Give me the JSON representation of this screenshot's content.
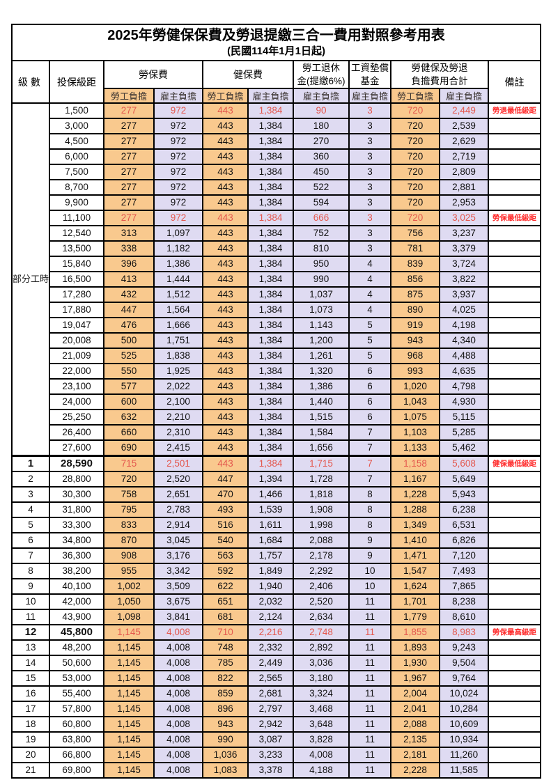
{
  "title": "2025年勞健保保費及勞退提繳三合一費用對照參考用表",
  "subtitle": "(民國114年1月1日起)",
  "colors": {
    "employee_bg": "#F9C98E",
    "employer_bg": "#DFDBF2",
    "highlight_value_red": "#E4584E",
    "remark_red": "#FF2A2A",
    "border": "#000000"
  },
  "header": {
    "level": "級數",
    "bracket": "投保級距",
    "labor_ins": "勞保費",
    "health_ins": "健保費",
    "pension_line1": "勞工退休",
    "pension_line2": "金(提繳6%)",
    "wage_fund_line1": "工資墊償",
    "wage_fund_line2": "基金",
    "total_line1": "勞健保及勞退",
    "total_line2": "負擔費用合計",
    "remark": "備註",
    "employee": "勞工負擔",
    "employer": "雇主負擔"
  },
  "part_time_label": "部分工時",
  "rows": [
    {
      "level": "",
      "bracket": "1,500",
      "values": [
        "277",
        "972",
        "443",
        "1,384",
        "90",
        "3",
        "720",
        "2,449"
      ],
      "remark": "勞退最低級距",
      "red": true,
      "bold": false
    },
    {
      "level": "",
      "bracket": "3,000",
      "values": [
        "277",
        "972",
        "443",
        "1,384",
        "180",
        "3",
        "720",
        "2,539"
      ],
      "remark": "",
      "red": false,
      "bold": false
    },
    {
      "level": "",
      "bracket": "4,500",
      "values": [
        "277",
        "972",
        "443",
        "1,384",
        "270",
        "3",
        "720",
        "2,629"
      ],
      "remark": "",
      "red": false,
      "bold": false
    },
    {
      "level": "",
      "bracket": "6,000",
      "values": [
        "277",
        "972",
        "443",
        "1,384",
        "360",
        "3",
        "720",
        "2,719"
      ],
      "remark": "",
      "red": false,
      "bold": false
    },
    {
      "level": "",
      "bracket": "7,500",
      "values": [
        "277",
        "972",
        "443",
        "1,384",
        "450",
        "3",
        "720",
        "2,809"
      ],
      "remark": "",
      "red": false,
      "bold": false
    },
    {
      "level": "",
      "bracket": "8,700",
      "values": [
        "277",
        "972",
        "443",
        "1,384",
        "522",
        "3",
        "720",
        "2,881"
      ],
      "remark": "",
      "red": false,
      "bold": false
    },
    {
      "level": "",
      "bracket": "9,900",
      "values": [
        "277",
        "972",
        "443",
        "1,384",
        "594",
        "3",
        "720",
        "2,953"
      ],
      "remark": "",
      "red": false,
      "bold": false
    },
    {
      "level": "",
      "bracket": "11,100",
      "values": [
        "277",
        "972",
        "443",
        "1,384",
        "666",
        "3",
        "720",
        "3,025"
      ],
      "remark": "勞保最低級距",
      "red": true,
      "bold": false
    },
    {
      "level": "",
      "bracket": "12,540",
      "values": [
        "313",
        "1,097",
        "443",
        "1,384",
        "752",
        "3",
        "756",
        "3,237"
      ],
      "remark": "",
      "red": false,
      "bold": false
    },
    {
      "level": "",
      "bracket": "13,500",
      "values": [
        "338",
        "1,182",
        "443",
        "1,384",
        "810",
        "3",
        "781",
        "3,379"
      ],
      "remark": "",
      "red": false,
      "bold": false
    },
    {
      "level": "",
      "bracket": "15,840",
      "values": [
        "396",
        "1,386",
        "443",
        "1,384",
        "950",
        "4",
        "839",
        "3,724"
      ],
      "remark": "",
      "red": false,
      "bold": false
    },
    {
      "level": "",
      "bracket": "16,500",
      "values": [
        "413",
        "1,444",
        "443",
        "1,384",
        "990",
        "4",
        "856",
        "3,822"
      ],
      "remark": "",
      "red": false,
      "bold": false
    },
    {
      "level": "",
      "bracket": "17,280",
      "values": [
        "432",
        "1,512",
        "443",
        "1,384",
        "1,037",
        "4",
        "875",
        "3,937"
      ],
      "remark": "",
      "red": false,
      "bold": false
    },
    {
      "level": "",
      "bracket": "17,880",
      "values": [
        "447",
        "1,564",
        "443",
        "1,384",
        "1,073",
        "4",
        "890",
        "4,025"
      ],
      "remark": "",
      "red": false,
      "bold": false
    },
    {
      "level": "",
      "bracket": "19,047",
      "values": [
        "476",
        "1,666",
        "443",
        "1,384",
        "1,143",
        "5",
        "919",
        "4,198"
      ],
      "remark": "",
      "red": false,
      "bold": false
    },
    {
      "level": "",
      "bracket": "20,008",
      "values": [
        "500",
        "1,751",
        "443",
        "1,384",
        "1,200",
        "5",
        "943",
        "4,340"
      ],
      "remark": "",
      "red": false,
      "bold": false
    },
    {
      "level": "",
      "bracket": "21,009",
      "values": [
        "525",
        "1,838",
        "443",
        "1,384",
        "1,261",
        "5",
        "968",
        "4,488"
      ],
      "remark": "",
      "red": false,
      "bold": false
    },
    {
      "level": "",
      "bracket": "22,000",
      "values": [
        "550",
        "1,925",
        "443",
        "1,384",
        "1,320",
        "6",
        "993",
        "4,635"
      ],
      "remark": "",
      "red": false,
      "bold": false
    },
    {
      "level": "",
      "bracket": "23,100",
      "values": [
        "577",
        "2,022",
        "443",
        "1,384",
        "1,386",
        "6",
        "1,020",
        "4,798"
      ],
      "remark": "",
      "red": false,
      "bold": false
    },
    {
      "level": "",
      "bracket": "24,000",
      "values": [
        "600",
        "2,100",
        "443",
        "1,384",
        "1,440",
        "6",
        "1,043",
        "4,930"
      ],
      "remark": "",
      "red": false,
      "bold": false
    },
    {
      "level": "",
      "bracket": "25,250",
      "values": [
        "632",
        "2,210",
        "443",
        "1,384",
        "1,515",
        "6",
        "1,075",
        "5,115"
      ],
      "remark": "",
      "red": false,
      "bold": false
    },
    {
      "level": "",
      "bracket": "26,400",
      "values": [
        "660",
        "2,310",
        "443",
        "1,384",
        "1,584",
        "7",
        "1,103",
        "5,285"
      ],
      "remark": "",
      "red": false,
      "bold": false
    },
    {
      "level": "",
      "bracket": "27,600",
      "values": [
        "690",
        "2,415",
        "443",
        "1,384",
        "1,656",
        "7",
        "1,133",
        "5,462"
      ],
      "remark": "",
      "red": false,
      "bold": false
    },
    {
      "level": "1",
      "bracket": "28,590",
      "values": [
        "715",
        "2,501",
        "443",
        "1,384",
        "1,715",
        "7",
        "1,158",
        "5,608"
      ],
      "remark": "健保最低級距",
      "red": true,
      "bold": true
    },
    {
      "level": "2",
      "bracket": "28,800",
      "values": [
        "720",
        "2,520",
        "447",
        "1,394",
        "1,728",
        "7",
        "1,167",
        "5,649"
      ],
      "remark": "",
      "red": false,
      "bold": false
    },
    {
      "level": "3",
      "bracket": "30,300",
      "values": [
        "758",
        "2,651",
        "470",
        "1,466",
        "1,818",
        "8",
        "1,228",
        "5,943"
      ],
      "remark": "",
      "red": false,
      "bold": false
    },
    {
      "level": "4",
      "bracket": "31,800",
      "values": [
        "795",
        "2,783",
        "493",
        "1,539",
        "1,908",
        "8",
        "1,288",
        "6,238"
      ],
      "remark": "",
      "red": false,
      "bold": false
    },
    {
      "level": "5",
      "bracket": "33,300",
      "values": [
        "833",
        "2,914",
        "516",
        "1,611",
        "1,998",
        "8",
        "1,349",
        "6,531"
      ],
      "remark": "",
      "red": false,
      "bold": false
    },
    {
      "level": "6",
      "bracket": "34,800",
      "values": [
        "870",
        "3,045",
        "540",
        "1,684",
        "2,088",
        "9",
        "1,410",
        "6,826"
      ],
      "remark": "",
      "red": false,
      "bold": false
    },
    {
      "level": "7",
      "bracket": "36,300",
      "values": [
        "908",
        "3,176",
        "563",
        "1,757",
        "2,178",
        "9",
        "1,471",
        "7,120"
      ],
      "remark": "",
      "red": false,
      "bold": false
    },
    {
      "level": "8",
      "bracket": "38,200",
      "values": [
        "955",
        "3,342",
        "592",
        "1,849",
        "2,292",
        "10",
        "1,547",
        "7,493"
      ],
      "remark": "",
      "red": false,
      "bold": false
    },
    {
      "level": "9",
      "bracket": "40,100",
      "values": [
        "1,002",
        "3,509",
        "622",
        "1,940",
        "2,406",
        "10",
        "1,624",
        "7,865"
      ],
      "remark": "",
      "red": false,
      "bold": false
    },
    {
      "level": "10",
      "bracket": "42,000",
      "values": [
        "1,050",
        "3,675",
        "651",
        "2,032",
        "2,520",
        "11",
        "1,701",
        "8,238"
      ],
      "remark": "",
      "red": false,
      "bold": false
    },
    {
      "level": "11",
      "bracket": "43,900",
      "values": [
        "1,098",
        "3,841",
        "681",
        "2,124",
        "2,634",
        "11",
        "1,779",
        "8,610"
      ],
      "remark": "",
      "red": false,
      "bold": false
    },
    {
      "level": "12",
      "bracket": "45,800",
      "values": [
        "1,145",
        "4,008",
        "710",
        "2,216",
        "2,748",
        "11",
        "1,855",
        "8,983"
      ],
      "remark": "勞保最高級距",
      "red": true,
      "bold": true
    },
    {
      "level": "13",
      "bracket": "48,200",
      "values": [
        "1,145",
        "4,008",
        "748",
        "2,332",
        "2,892",
        "11",
        "1,893",
        "9,243"
      ],
      "remark": "",
      "red": false,
      "bold": false
    },
    {
      "level": "14",
      "bracket": "50,600",
      "values": [
        "1,145",
        "4,008",
        "785",
        "2,449",
        "3,036",
        "11",
        "1,930",
        "9,504"
      ],
      "remark": "",
      "red": false,
      "bold": false
    },
    {
      "level": "15",
      "bracket": "53,000",
      "values": [
        "1,145",
        "4,008",
        "822",
        "2,565",
        "3,180",
        "11",
        "1,967",
        "9,764"
      ],
      "remark": "",
      "red": false,
      "bold": false
    },
    {
      "level": "16",
      "bracket": "55,400",
      "values": [
        "1,145",
        "4,008",
        "859",
        "2,681",
        "3,324",
        "11",
        "2,004",
        "10,024"
      ],
      "remark": "",
      "red": false,
      "bold": false
    },
    {
      "level": "17",
      "bracket": "57,800",
      "values": [
        "1,145",
        "4,008",
        "896",
        "2,797",
        "3,468",
        "11",
        "2,041",
        "10,284"
      ],
      "remark": "",
      "red": false,
      "bold": false
    },
    {
      "level": "18",
      "bracket": "60,800",
      "values": [
        "1,145",
        "4,008",
        "943",
        "2,942",
        "3,648",
        "11",
        "2,088",
        "10,609"
      ],
      "remark": "",
      "red": false,
      "bold": false
    },
    {
      "level": "19",
      "bracket": "63,800",
      "values": [
        "1,145",
        "4,008",
        "990",
        "3,087",
        "3,828",
        "11",
        "2,135",
        "10,934"
      ],
      "remark": "",
      "red": false,
      "bold": false
    },
    {
      "level": "20",
      "bracket": "66,800",
      "values": [
        "1,145",
        "4,008",
        "1,036",
        "3,233",
        "4,008",
        "11",
        "2,181",
        "11,260"
      ],
      "remark": "",
      "red": false,
      "bold": false
    },
    {
      "level": "21",
      "bracket": "69,800",
      "values": [
        "1,145",
        "4,008",
        "1,083",
        "3,378",
        "4,188",
        "11",
        "2,228",
        "11,585"
      ],
      "remark": "",
      "red": false,
      "bold": false
    }
  ]
}
